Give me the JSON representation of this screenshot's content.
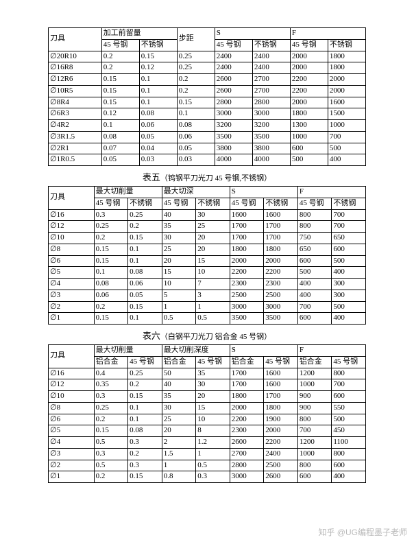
{
  "colors": {
    "page_bg": "#ffffff",
    "body_bg": "#f5f5f5",
    "border": "#000000",
    "text": "#000000",
    "watermark": "#b9b9b9"
  },
  "typography": {
    "body_font": "SimSun",
    "body_size_pt": 11,
    "caption_size_pt": 13,
    "caption_sub_size_pt": 11
  },
  "table1": {
    "type": "table",
    "header_row1": [
      "刀具",
      "加工前留量",
      "步距",
      "S",
      "F"
    ],
    "header_row2": [
      "45 号钢",
      "不锈钢",
      "45 号钢",
      "不锈钢",
      "45 号钢",
      "不锈钢"
    ],
    "col0_prefix": "∅",
    "col0": [
      "20R10",
      "16R8",
      "12R6",
      "10R5",
      "8R4",
      "6R3",
      "4R2",
      "3R1.5",
      "2R1",
      "1R0.5"
    ],
    "rows": [
      [
        "0.2",
        "0.15",
        "0.25",
        "2400",
        "2400",
        "2000",
        "1800"
      ],
      [
        "0.2",
        "0.12",
        "0.25",
        "2400",
        "2400",
        "2000",
        "1800"
      ],
      [
        "0.15",
        "0.1",
        "0.2",
        "2600",
        "2700",
        "2200",
        "2000"
      ],
      [
        "0.15",
        "0.1",
        "0.2",
        "2600",
        "2700",
        "2200",
        "2000"
      ],
      [
        "0.15",
        "0.1",
        "0.15",
        "2800",
        "2800",
        "2000",
        "1600"
      ],
      [
        "0.12",
        "0.08",
        "0.1",
        "3000",
        "3000",
        "1800",
        "1500"
      ],
      [
        "0.1",
        "0.06",
        "0.08",
        "3200",
        "3200",
        "1300",
        "1000"
      ],
      [
        "0.08",
        "0.05",
        "0.06",
        "3500",
        "3500",
        "1000",
        "700"
      ],
      [
        "0.07",
        "0.04",
        "0.05",
        "3800",
        "3800",
        "600",
        "500"
      ],
      [
        "0.05",
        "0.03",
        "0.03",
        "4000",
        "4000",
        "500",
        "400"
      ]
    ]
  },
  "caption5_main": "表五",
  "caption5_sub": "（钨钢平刀光刀 45 号钢,不锈钢）",
  "table2": {
    "type": "table",
    "header_row1": [
      "刀具",
      "最大切削量",
      "最大切深",
      "S",
      "F"
    ],
    "header_row2": [
      "45 号钢",
      "不锈钢",
      "45 号钢",
      "不锈钢",
      "45 号钢",
      "不锈钢",
      "45 号钢",
      "不锈钢"
    ],
    "col0_prefix": "∅",
    "col0": [
      "16",
      "12",
      "10",
      "8",
      "6",
      "5",
      "4",
      "3",
      "2",
      "1"
    ],
    "rows": [
      [
        "0.3",
        "0.25",
        "40",
        "30",
        "1600",
        "1600",
        "800",
        "700"
      ],
      [
        "0.25",
        "0.2",
        "35",
        "25",
        "1700",
        "1700",
        "800",
        "700"
      ],
      [
        "0.2",
        "0.15",
        "30",
        "20",
        "1700",
        "1700",
        "750",
        "650"
      ],
      [
        "0.15",
        "0.1",
        "25",
        "20",
        "1800",
        "1800",
        "650",
        "600"
      ],
      [
        "0.15",
        "0.1",
        "20",
        "15",
        "2000",
        "2000",
        "600",
        "500"
      ],
      [
        "0.1",
        "0.08",
        "15",
        "10",
        "2200",
        "2200",
        "500",
        "400"
      ],
      [
        "0.08",
        "0.06",
        "10",
        "7",
        "2300",
        "2300",
        "400",
        "300"
      ],
      [
        "0.06",
        "0.05",
        "5",
        "3",
        "2500",
        "2500",
        "400",
        "300"
      ],
      [
        "0.2",
        "0.15",
        "1",
        "1",
        "3000",
        "3000",
        "700",
        "500"
      ],
      [
        "0.15",
        "0.1",
        "0.5",
        "0.5",
        "3500",
        "3500",
        "600",
        "400"
      ]
    ]
  },
  "caption6_main": "表六",
  "caption6_sub": "（白钢平刀光刀 铝合金 45 号钢）",
  "table3": {
    "type": "table",
    "header_row1": [
      "刀具",
      "最大切削量",
      "最大切削深度",
      "S",
      "F"
    ],
    "header_row2": [
      "铝合金",
      "45 号钢",
      "铝合金",
      "45 号钢",
      "铝合金",
      "45 号钢",
      "铝合金",
      "45 号钢"
    ],
    "col0_prefix": "∅",
    "col0": [
      "16",
      "12",
      "10",
      "8",
      "6",
      "5",
      "4",
      "3",
      "2",
      "1"
    ],
    "rows": [
      [
        "0.4",
        "0.25",
        "50",
        "35",
        "1700",
        "1600",
        "1200",
        "800"
      ],
      [
        "0.35",
        "0.2",
        "40",
        "30",
        "1700",
        "1600",
        "1000",
        "700"
      ],
      [
        "0.3",
        "0.15",
        "35",
        "20",
        "1800",
        "1700",
        "900",
        "600"
      ],
      [
        "0.25",
        "0.1",
        "30",
        "15",
        "2000",
        "1800",
        "900",
        "550"
      ],
      [
        "0.2",
        "0.1",
        "25",
        "10",
        "2200",
        "1900",
        "800",
        "500"
      ],
      [
        "0.15",
        "0.08",
        "20",
        "8",
        "2300",
        "2000",
        "700",
        "450"
      ],
      [
        "0.5",
        "0.3",
        "2",
        "1.2",
        "2600",
        "2200",
        "1200",
        "1100"
      ],
      [
        "0.3",
        "0.2",
        "1.5",
        "1",
        "2700",
        "2400",
        "1000",
        "800"
      ],
      [
        "0.5",
        "0.3",
        "1",
        "0.5",
        "2800",
        "2500",
        "800",
        "600"
      ],
      [
        "0.2",
        "0.15",
        "0.8",
        "0.3",
        "3000",
        "2600",
        "600",
        "400"
      ]
    ]
  },
  "watermark": "知乎 @UG编程墨子老师"
}
